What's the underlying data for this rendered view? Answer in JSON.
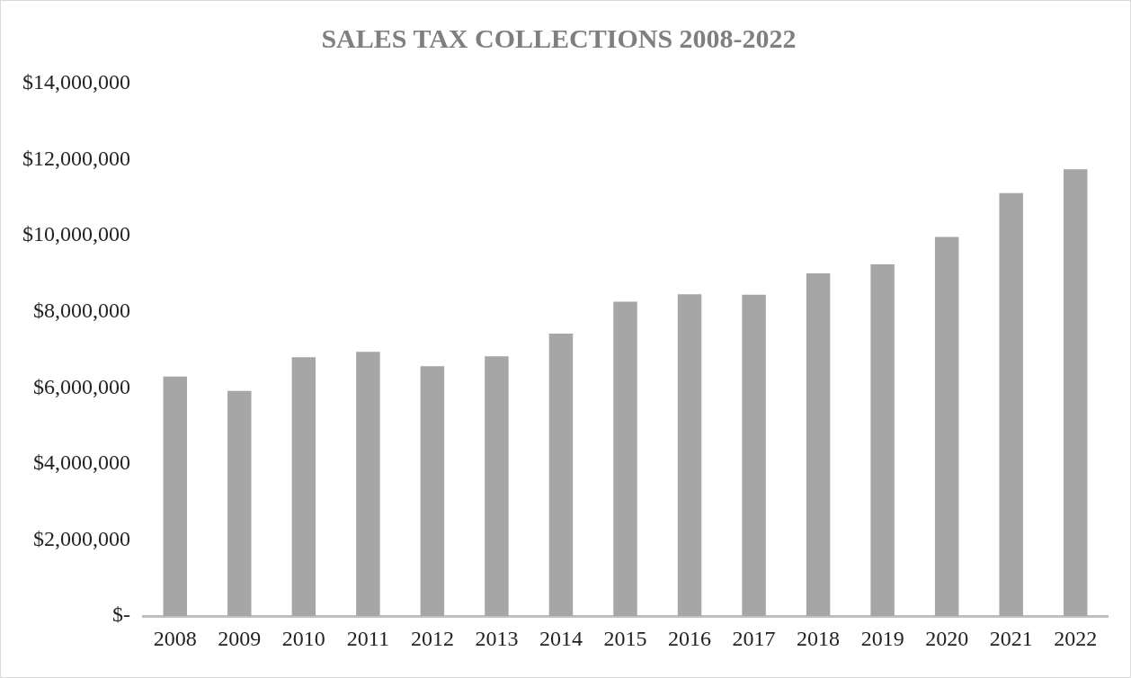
{
  "chart_data": {
    "type": "bar",
    "title": "SALES TAX COLLECTIONS 2008-2022",
    "categories": [
      "2008",
      "2009",
      "2010",
      "2011",
      "2012",
      "2013",
      "2014",
      "2015",
      "2016",
      "2017",
      "2018",
      "2019",
      "2020",
      "2021",
      "2022"
    ],
    "values": [
      6300000,
      5920000,
      6810000,
      6950000,
      6570000,
      6830000,
      7430000,
      8270000,
      8460000,
      8450000,
      9010000,
      9250000,
      9970000,
      11120000,
      11750000
    ],
    "color": "#a6a6a6",
    "ylim": [
      0,
      14000000
    ],
    "yticks": [
      {
        "value": 0,
        "label": "$-"
      },
      {
        "value": 2000000,
        "label": "$2,000,000"
      },
      {
        "value": 4000000,
        "label": "$4,000,000"
      },
      {
        "value": 6000000,
        "label": "$6,000,000"
      },
      {
        "value": 8000000,
        "label": "$8,000,000"
      },
      {
        "value": 10000000,
        "label": "$10,000,000"
      },
      {
        "value": 12000000,
        "label": "$12,000,000"
      },
      {
        "value": 14000000,
        "label": "$14,000,000"
      }
    ],
    "grid": false,
    "legend": false
  }
}
